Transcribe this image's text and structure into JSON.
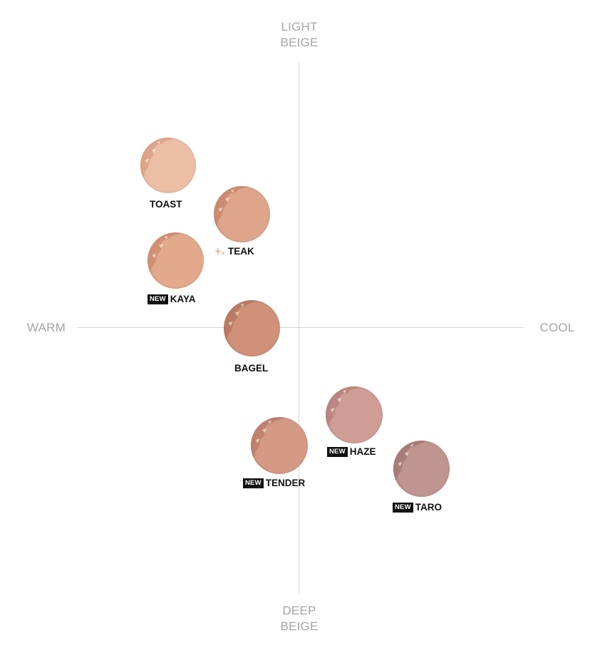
{
  "axes": {
    "top": [
      "LIGHT",
      "BEIGE"
    ],
    "bottom": [
      "DEEP",
      "BEIGE"
    ],
    "left": "WARM",
    "right": "COOL"
  },
  "badge_text": "NEW",
  "shades": [
    {
      "id": "toast",
      "name": "TOAST",
      "is_new": false,
      "featured": false,
      "color": "#eabfa6",
      "shade": "#d89c7f"
    },
    {
      "id": "teak",
      "name": "TEAK",
      "is_new": false,
      "featured": true,
      "color": "#dea58b",
      "shade": "#c4846a"
    },
    {
      "id": "kaya",
      "name": "KAYA",
      "is_new": true,
      "featured": false,
      "color": "#e2a98d",
      "shade": "#c98a6c"
    },
    {
      "id": "bagel",
      "name": "BAGEL",
      "is_new": false,
      "featured": false,
      "color": "#cf9278",
      "shade": "#b4745c"
    },
    {
      "id": "haze",
      "name": "HAZE",
      "is_new": true,
      "featured": false,
      "color": "#d09d94",
      "shade": "#b4807a"
    },
    {
      "id": "tender",
      "name": "TENDER",
      "is_new": true,
      "featured": false,
      "color": "#d49a86",
      "shade": "#b97b68"
    },
    {
      "id": "taro",
      "name": "TARO",
      "is_new": true,
      "featured": false,
      "color": "#c0948f",
      "shade": "#a17572"
    }
  ],
  "colors": {
    "axis": "#d6d6d6",
    "axis_label": "#a4a4a4",
    "sparkle": "#f0b8a6"
  }
}
